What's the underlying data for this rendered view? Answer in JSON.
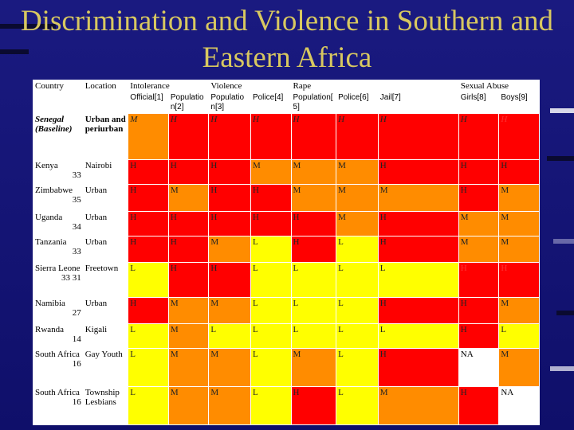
{
  "title": "Discrimination and Violence in Southern and Eastern Africa",
  "header": {
    "country": "Country",
    "location": "Location",
    "groups": [
      {
        "label": "Intolerance",
        "span": 2
      },
      {
        "label": "Violence",
        "span": 2
      },
      {
        "label": "Rape",
        "span": 3
      },
      {
        "label": "Sexual Abuse",
        "span": 2
      }
    ],
    "subcolumns": [
      "Official[1]",
      "Populatio n[2]",
      "Populatio n[3]",
      "Police[4]",
      "Population[ 5]",
      "Police[6]",
      "Jail[7]",
      "Girls[8]",
      "Boys[9]"
    ]
  },
  "rows": [
    {
      "country": "Senegal (Baseline)",
      "rank": "",
      "location": "Urban and periurban",
      "values": [
        "M",
        "H",
        "H",
        "H",
        "H",
        "H",
        "H",
        "H",
        "H"
      ],
      "baseline": true
    },
    {
      "country": "Kenya",
      "rank": "33",
      "location": "Nairobi",
      "values": [
        "H",
        "H",
        "H",
        "M",
        "M",
        "M",
        "H",
        "H",
        "H"
      ]
    },
    {
      "country": "Zimbabwe",
      "rank": "35",
      "location": "Urban",
      "values": [
        "H",
        "M",
        "H",
        "H",
        "M",
        "M",
        "M",
        "H",
        "M"
      ]
    },
    {
      "country": "Uganda",
      "rank": "34",
      "location": "Urban",
      "values": [
        "H",
        "H",
        "H",
        "H",
        "H",
        "M",
        "H",
        "M",
        "M"
      ]
    },
    {
      "country": "Tanzania",
      "rank": "33",
      "location": "Urban",
      "values": [
        "H",
        "H",
        "M",
        "L",
        "H",
        "L",
        "H",
        "M",
        "M"
      ]
    },
    {
      "country": "Sierra Leone",
      "rank": "33 31",
      "location": "Freetown",
      "values": [
        "L",
        "H",
        "H",
        "L",
        "L",
        "L",
        "L",
        "H",
        "H"
      ]
    },
    {
      "country": "Namibia",
      "rank": "27",
      "location": "Urban",
      "values": [
        "H",
        "M",
        "M",
        "L",
        "L",
        "L",
        "H",
        "H",
        "M"
      ]
    },
    {
      "country": "Rwanda",
      "rank": "14",
      "location": "Kigali",
      "values": [
        "L",
        "M",
        "L",
        "L",
        "L",
        "L",
        "L",
        "H",
        "L"
      ]
    },
    {
      "country": "South Africa",
      "rank": "16",
      "location": "Gay Youth",
      "values": [
        "L",
        "M",
        "M",
        "L",
        "M",
        "L",
        "H",
        "NA",
        "M"
      ]
    },
    {
      "country": "South Africa",
      "rank": "16",
      "location": "Township Lesbians",
      "values": [
        "L",
        "M",
        "M",
        "L",
        "H",
        "L",
        "M",
        "H",
        "NA"
      ]
    }
  ],
  "colors": {
    "H": "#ff0000",
    "M": "#ff8c00",
    "L": "#ffff00",
    "NA": "#ffffff",
    "title": "#d8c860",
    "background": "#101070"
  }
}
